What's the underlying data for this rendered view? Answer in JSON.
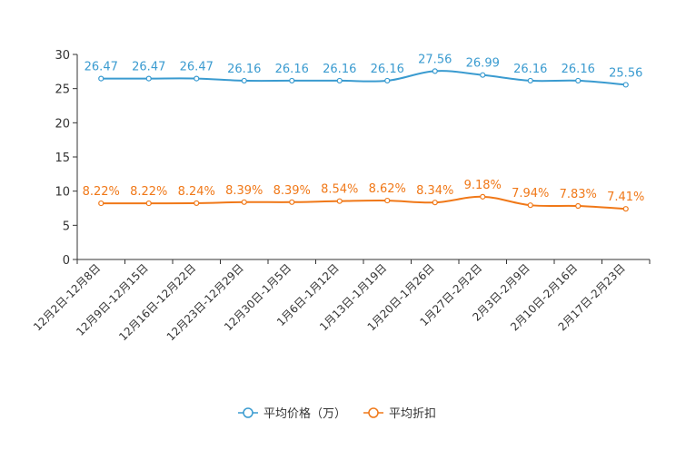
{
  "chart_data": {
    "type": "line",
    "categories": [
      "12月2日-12月8日",
      "12月9日-12月15日",
      "12月16日-12月22日",
      "12月23日-12月29日",
      "12月30日-1月5日",
      "1月6日-1月12日",
      "1月13日-1月19日",
      "1月20日-1月26日",
      "1月27日-2月2日",
      "2月3日-2月9日",
      "2月10日-2月16日",
      "2月17日-2月23日"
    ],
    "ylim": [
      0,
      30
    ],
    "yticks": [
      0,
      5,
      10,
      15,
      20,
      25,
      30
    ],
    "series": [
      {
        "name": "平均价格（万）",
        "color": "#3a9bd0",
        "values": [
          26.47,
          26.47,
          26.47,
          26.16,
          26.16,
          26.16,
          26.16,
          27.56,
          26.99,
          26.16,
          26.16,
          25.56
        ],
        "labels": [
          "26.47",
          "26.47",
          "26.47",
          "26.16",
          "26.16",
          "26.16",
          "26.16",
          "27.56",
          "26.99",
          "26.16",
          "26.16",
          "25.56"
        ]
      },
      {
        "name": "平均折扣",
        "color": "#f07818",
        "values": [
          8.22,
          8.22,
          8.24,
          8.39,
          8.39,
          8.54,
          8.62,
          8.34,
          9.18,
          7.94,
          7.83,
          7.41
        ],
        "labels": [
          "8.22%",
          "8.22%",
          "8.24%",
          "8.39%",
          "8.39%",
          "8.54%",
          "8.62%",
          "8.34%",
          "9.18%",
          "7.94%",
          "7.83%",
          "7.41%"
        ]
      }
    ]
  }
}
